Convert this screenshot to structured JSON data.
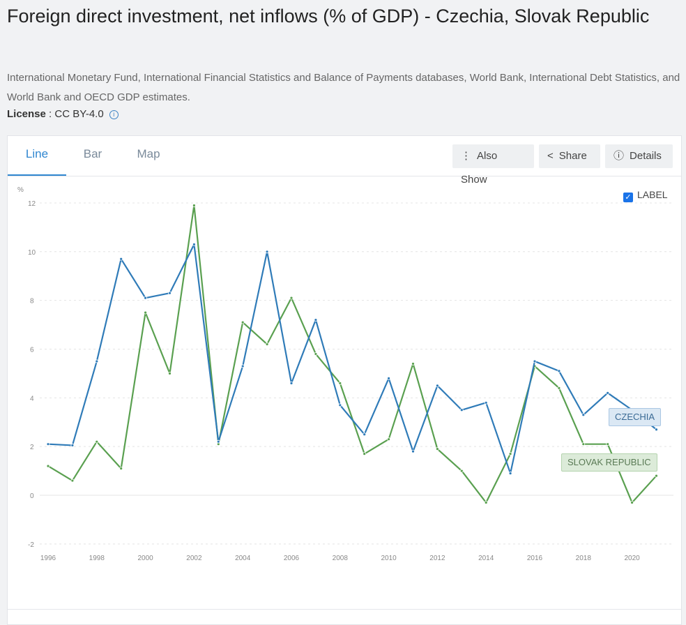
{
  "header": {
    "title": "Foreign direct investment, net inflows (% of GDP) - Czechia, Slovak Republic",
    "source": "International Monetary Fund, International Financial Statistics and Balance of Payments databases, World Bank, International Debt Statistics, and World Bank and OECD GDP estimates.",
    "license_label": "License",
    "license_value": " : CC BY-4.0"
  },
  "tabs": [
    {
      "label": "Line"
    },
    {
      "label": "Bar"
    },
    {
      "label": "Map"
    }
  ],
  "buttons": {
    "also_show": "Also Show",
    "share": "Share",
    "details": "Details"
  },
  "label_toggle": {
    "label": "LABEL",
    "checked": true
  },
  "chart_data": {
    "type": "line",
    "ylabel": "%",
    "ylim": [
      -2,
      12
    ],
    "yticks": [
      -2,
      0,
      2,
      4,
      6,
      8,
      10,
      12
    ],
    "xticks": [
      1996,
      1998,
      2000,
      2002,
      2004,
      2006,
      2008,
      2010,
      2012,
      2014,
      2016,
      2018,
      2020
    ],
    "x": [
      1996,
      1997,
      1998,
      1999,
      2000,
      2001,
      2002,
      2003,
      2004,
      2005,
      2006,
      2007,
      2008,
      2009,
      2010,
      2011,
      2012,
      2013,
      2014,
      2015,
      2016,
      2017,
      2018,
      2019,
      2020,
      2021
    ],
    "grid": true,
    "series": [
      {
        "name": "CZECHIA",
        "color": "#2f7bb8",
        "label_bg": "#dbe8f4",
        "label_border": "#a9c6e3",
        "values": [
          2.1,
          2.05,
          5.5,
          9.7,
          8.1,
          8.3,
          10.3,
          2.2,
          5.3,
          10.0,
          4.6,
          7.2,
          3.7,
          2.5,
          4.8,
          1.8,
          4.5,
          3.5,
          3.8,
          0.9,
          5.5,
          5.1,
          3.3,
          4.2,
          3.5,
          2.7
        ]
      },
      {
        "name": "SLOVAK REPUBLIC",
        "color": "#5aa050",
        "label_bg": "#dcebd9",
        "label_border": "#b4d3ae",
        "values": [
          1.2,
          0.6,
          2.2,
          1.1,
          7.5,
          5.0,
          11.9,
          2.1,
          7.1,
          6.2,
          8.1,
          5.8,
          4.6,
          1.7,
          2.3,
          5.4,
          1.9,
          1.0,
          -0.3,
          1.7,
          5.3,
          4.4,
          2.1,
          2.1,
          -0.3,
          0.8
        ]
      }
    ]
  }
}
